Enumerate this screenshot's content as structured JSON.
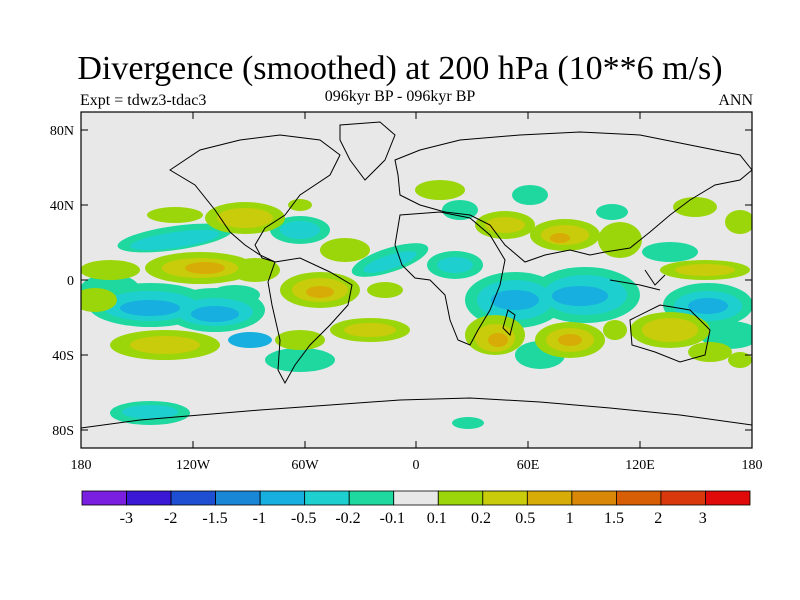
{
  "header": {
    "title": "Divergence (smoothed) at 200 hPa (10**6 m/s)",
    "subtitle": "096kyr BP - 096kyr BP",
    "experiment": "Expt = tdwz3-tdac3",
    "season": "ANN"
  },
  "axes": {
    "lat_ticks": [
      "80N",
      "40N",
      "0",
      "40S",
      "80S"
    ],
    "lon_ticks": [
      "180",
      "120W",
      "60W",
      "0",
      "60E",
      "120E",
      "180"
    ]
  },
  "colorbar": {
    "colors": [
      "#7a1fe0",
      "#3a18d6",
      "#1e4fd2",
      "#1a86d6",
      "#17aee0",
      "#1ecfcf",
      "#1ed8a0",
      "#e8e8e8",
      "#9bd60a",
      "#c8cc0a",
      "#d8ac06",
      "#d88806",
      "#d85e06",
      "#d8380c",
      "#e00a0a"
    ],
    "labels": [
      "-3",
      "-2",
      "-1.5",
      "-1",
      "-0.5",
      "-0.2",
      "-0.1",
      "0.1",
      "0.2",
      "0.5",
      "1",
      "1.5",
      "2",
      "3"
    ]
  },
  "map": {
    "background": "#e8e8e8"
  }
}
